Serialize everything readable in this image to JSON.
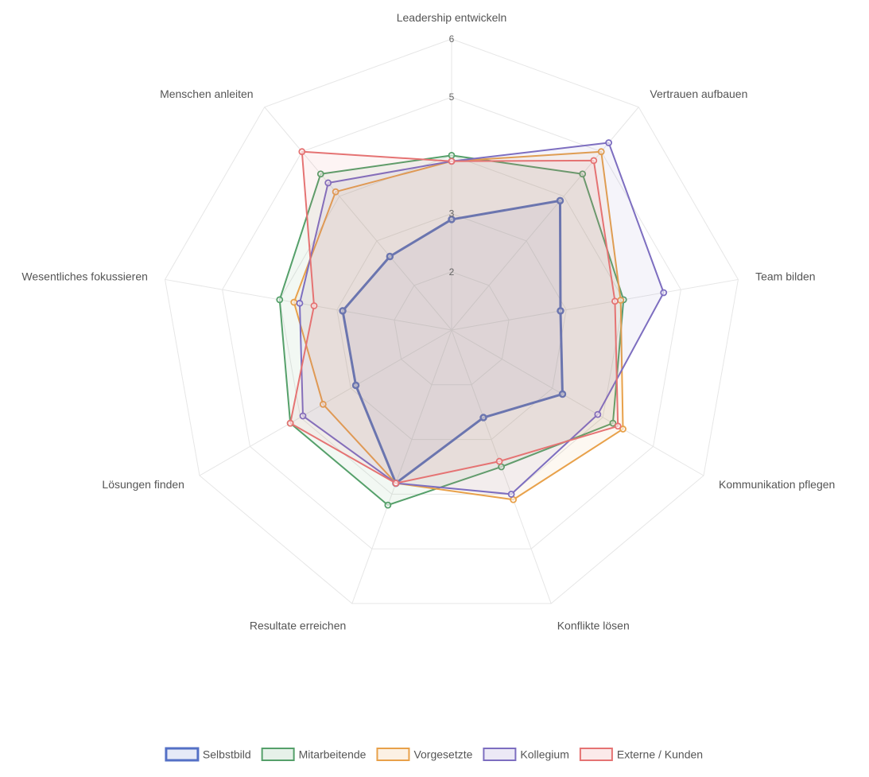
{
  "chart_data": {
    "type": "radar",
    "categories": [
      "Leadership entwickeln",
      "Vertrauen aufbauen",
      "Team bilden",
      "Kommunikation pflegen",
      "Konflikte lösen",
      "Resultate erreichen",
      "Lösungen finden",
      "Wesentliches fokussieren",
      "Menschen anleiten"
    ],
    "rlim": [
      1,
      6
    ],
    "ticks": [
      2,
      3,
      5,
      6
    ],
    "grid": true,
    "legend_position": "bottom",
    "series": [
      {
        "name": "Selbstbild",
        "color": "#5470c6",
        "values": [
          2.9,
          3.9,
          2.9,
          3.2,
          2.6,
          3.8,
          2.9,
          2.9,
          2.65
        ]
      },
      {
        "name": "Mitarbeitende",
        "color": "#55a06a",
        "values": [
          4.0,
          4.5,
          4.0,
          4.2,
          3.5,
          4.2,
          4.2,
          4.0,
          4.5
        ]
      },
      {
        "name": "Vorgesetzte",
        "color": "#e8a14a",
        "values": [
          3.9,
          5.0,
          3.95,
          4.4,
          4.1,
          3.8,
          3.55,
          3.75,
          4.1
        ]
      },
      {
        "name": "Kollegium",
        "color": "#7d6ec0",
        "values": [
          3.9,
          5.2,
          4.7,
          3.9,
          4.0,
          3.8,
          3.95,
          3.65,
          4.3
        ]
      },
      {
        "name": "Externe / Kunden",
        "color": "#e57373",
        "values": [
          3.9,
          4.8,
          3.85,
          4.3,
          3.4,
          3.8,
          4.2,
          3.4,
          5.0
        ]
      }
    ]
  }
}
